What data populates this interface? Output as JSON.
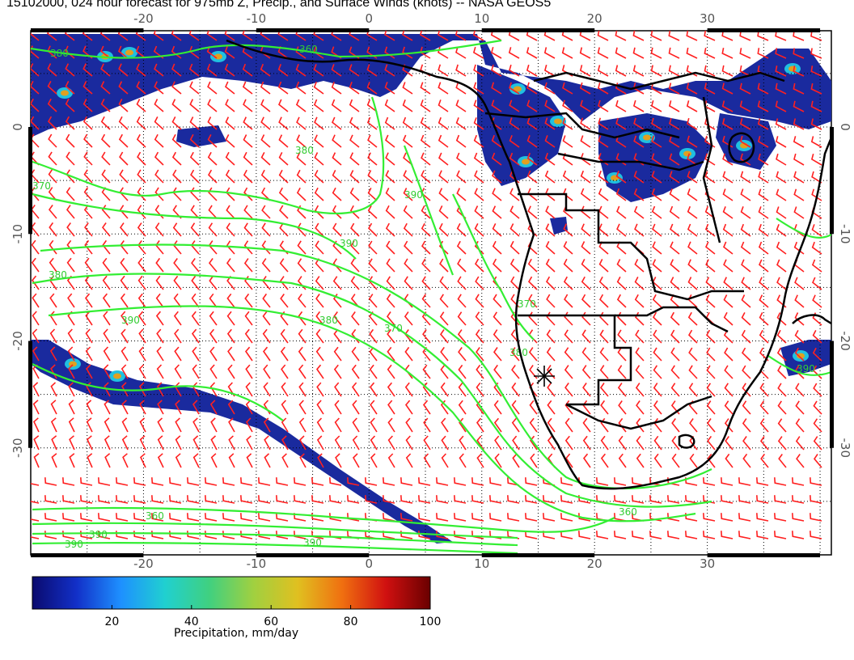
{
  "title": "15102000, 024 hour forecast for 975mb Z, Precip., and Surface Winds (knots) -- NASA GEOS5",
  "map": {
    "lon_ticks": [
      "-20",
      "-10",
      "0",
      "10",
      "20",
      "30"
    ],
    "lat_ticks": [
      "0",
      "-10",
      "-20",
      "-30"
    ],
    "extent": {
      "lon_min": -30,
      "lon_max": 41,
      "lat_min": -40,
      "lat_max": 9
    }
  },
  "contours": {
    "color": "#33ee33",
    "labels": [
      "380",
      "360",
      "370",
      "380",
      "390",
      "380",
      "390",
      "390",
      "380",
      "370",
      "360",
      "390",
      "390",
      "380",
      "370",
      "360",
      "390",
      "390"
    ]
  },
  "winds": {
    "color": "#ff2020",
    "units": "knots"
  },
  "precip_color": "#1a2a9e",
  "coast_color": "#000000",
  "colorbar": {
    "ticks": [
      "20",
      "40",
      "60",
      "80",
      "100"
    ],
    "label": "Precipitation, mm/day",
    "colors": [
      "#0a0a6e",
      "#1230c8",
      "#1e90ff",
      "#20d0d0",
      "#40d080",
      "#a0d040",
      "#e0c020",
      "#f07010",
      "#d01010",
      "#6a0000"
    ]
  }
}
